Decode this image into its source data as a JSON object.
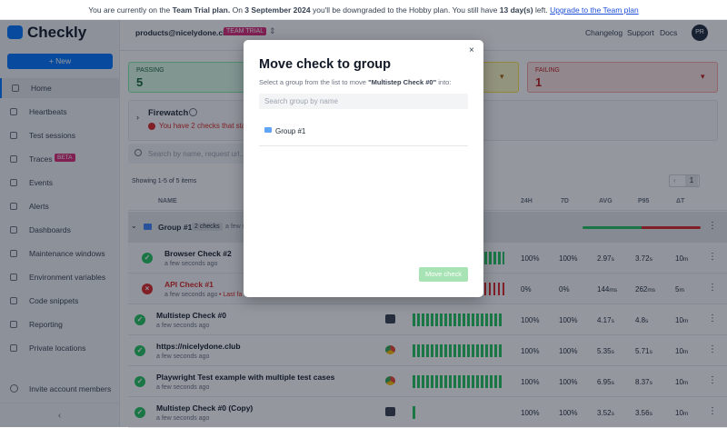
{
  "banner": {
    "text_1": "You are currently on the",
    "plan": "Team Trial plan.",
    "text_2": "On",
    "date": "3 September 2024",
    "text_3": "you'll be downgraded to the Hobby plan. You still have",
    "days": "13 day(s)",
    "text_4": "left.",
    "link": "Upgrade to the Team plan"
  },
  "sidebar": {
    "logo": "Checkly",
    "new_button": "New",
    "nav": [
      {
        "label": "Home"
      },
      {
        "label": "Heartbeats"
      },
      {
        "label": "Test sessions"
      },
      {
        "label": "Traces",
        "badge": "BETA"
      },
      {
        "label": "Events"
      },
      {
        "label": "Alerts"
      },
      {
        "label": "Dashboards"
      },
      {
        "label": "Maintenance windows"
      },
      {
        "label": "Environment variables"
      },
      {
        "label": "Code snippets"
      },
      {
        "label": "Reporting"
      },
      {
        "label": "Private locations"
      }
    ],
    "invite": "Invite account members"
  },
  "topbar": {
    "account": "products@nicelydone.cl...",
    "plan_badge": "TEAM TRIAL",
    "links": [
      "Changelog",
      "Support",
      "Docs"
    ],
    "avatar": "PR"
  },
  "summary": {
    "passing": {
      "label": "PASSING",
      "count": 5
    },
    "failing": {
      "label": "FAILING",
      "count": 1
    }
  },
  "firewatch": {
    "title": "Firewatch",
    "message": "You have 2 checks that sta"
  },
  "search_placeholder": "Search by name, request url...",
  "pagination": {
    "summary": "Showing 1-5 of 5 items",
    "page": 1
  },
  "table": {
    "headers": {
      "name": "NAME",
      "h24": "24H",
      "d7": "7D",
      "avg": "AVG",
      "p95": "P95",
      "dt": "ΔT"
    },
    "group": {
      "name": "Group #1",
      "count": "2 checks",
      "time": "a few s"
    },
    "rows": [
      {
        "name": "Browser Check #2",
        "time": "a few seconds ago",
        "status": "pass",
        "indented": true,
        "h24": "100%",
        "d7": "100%",
        "avg": "2.97",
        "avg_unit": "s",
        "p95": "3.72",
        "p95_unit": "s",
        "dt": "10",
        "dt_unit": "m"
      },
      {
        "name": "API Check #1",
        "time": "a few seconds ago",
        "extra": "• Last fa",
        "status": "fail",
        "indented": true,
        "h24": "0%",
        "d7": "0%",
        "avg": "144",
        "avg_unit": "ms",
        "p95": "262",
        "p95_unit": "ms",
        "dt": "5",
        "dt_unit": "m"
      },
      {
        "name": "Multistep Check #0",
        "time": "a few seconds ago",
        "status": "pass",
        "icon": "terminal",
        "h24": "100%",
        "d7": "100%",
        "avg": "4.17",
        "avg_unit": "s",
        "p95": "4.8",
        "p95_unit": "s",
        "dt": "10",
        "dt_unit": "m"
      },
      {
        "name": "https://nicelydone.club",
        "time": "a few seconds ago",
        "status": "pass",
        "icon": "browser",
        "h24": "100%",
        "d7": "100%",
        "avg": "5.35",
        "avg_unit": "s",
        "p95": "5.71",
        "p95_unit": "s",
        "dt": "10",
        "dt_unit": "m"
      },
      {
        "name": "Playwright Test example with multiple test cases",
        "time": "a few seconds ago",
        "status": "pass",
        "icon": "browser",
        "h24": "100%",
        "d7": "100%",
        "avg": "6.95",
        "avg_unit": "s",
        "p95": "8.37",
        "p95_unit": "s",
        "dt": "10",
        "dt_unit": "m"
      },
      {
        "name": "Multistep Check #0 (Copy)",
        "time": "a few seconds ago",
        "status": "pass",
        "icon": "terminal",
        "short": true,
        "h24": "100%",
        "d7": "100%",
        "avg": "3.52",
        "avg_unit": "s",
        "p95": "3.56",
        "p95_unit": "s",
        "dt": "10",
        "dt_unit": "m"
      }
    ]
  },
  "modal": {
    "title": "Move check to group",
    "desc_1": "Select a group from the list to move",
    "check": "\"Multistep Check #0\"",
    "desc_2": "into:",
    "search_placeholder": "Search group by name",
    "groups": [
      "Group #1"
    ],
    "button": "Move check"
  }
}
